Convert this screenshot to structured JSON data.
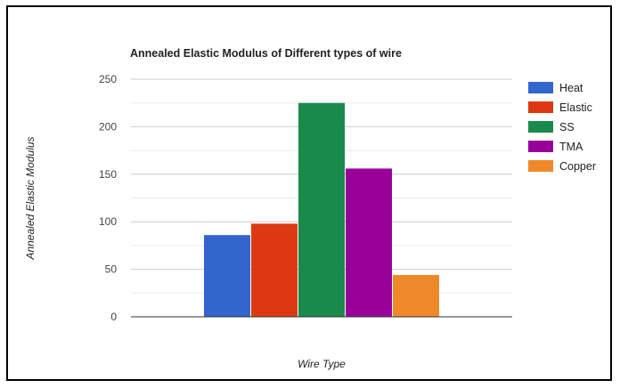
{
  "chart_data": {
    "type": "bar",
    "title": "Annealed Elastic Modulus of Different types of wire",
    "xlabel": "Wire Type",
    "ylabel": "Annealed Elastic Modulus",
    "ylim": [
      0,
      250
    ],
    "yticks": [
      0,
      50,
      100,
      150,
      200,
      250
    ],
    "grid": true,
    "legend_position": "right",
    "series": [
      {
        "name": "Heat",
        "values": [
          86
        ],
        "color": "#3366cc"
      },
      {
        "name": "Elastic",
        "values": [
          98
        ],
        "color": "#dc3912"
      },
      {
        "name": "SS",
        "values": [
          225
        ],
        "color": "#1a8a4c"
      },
      {
        "name": "TMA",
        "values": [
          156
        ],
        "color": "#990099"
      },
      {
        "name": "Copper",
        "values": [
          44
        ],
        "color": "#f0892a"
      }
    ]
  }
}
